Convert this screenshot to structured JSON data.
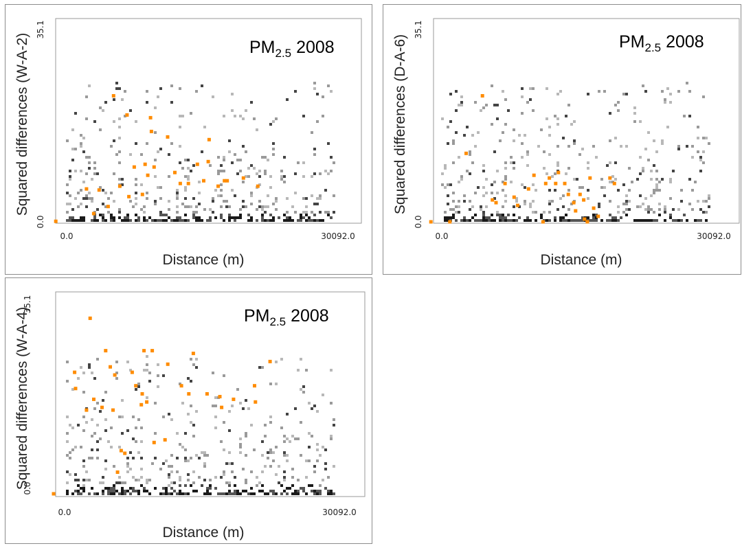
{
  "chart_data": [
    {
      "type": "scatter",
      "title_prefix": "PM",
      "title_sub": "2.5",
      "title_suffix": " 2008",
      "xlabel": "Distance (m)",
      "ylabel": "Squared differences (W-A-2)",
      "xlim": [
        0.0,
        30092.0
      ],
      "ylim": [
        0.0,
        35.1
      ],
      "x_tick_labels": [
        "0.0",
        "30092.0"
      ],
      "y_tick_labels": [
        "0.0",
        "35.1"
      ],
      "grid": false,
      "colors": {
        "highlight": "#ff8c00",
        "cloud": "#7a7a7a",
        "dense": "#1a1a1a"
      },
      "highlighted_points": [
        {
          "x": -1200,
          "y": 0.1
        },
        {
          "x": 2200,
          "y": 6.0
        },
        {
          "x": 3000,
          "y": 1.5
        },
        {
          "x": 3600,
          "y": 5.8
        },
        {
          "x": 4600,
          "y": 2.8
        },
        {
          "x": 5200,
          "y": 23.0
        },
        {
          "x": 5900,
          "y": 6.5
        },
        {
          "x": 6700,
          "y": 19.5
        },
        {
          "x": 6900,
          "y": 4.6
        },
        {
          "x": 7500,
          "y": 10.0
        },
        {
          "x": 8400,
          "y": 5.0
        },
        {
          "x": 8700,
          "y": 10.5
        },
        {
          "x": 9000,
          "y": 8.5
        },
        {
          "x": 9300,
          "y": 19.0
        },
        {
          "x": 9400,
          "y": 16.5
        },
        {
          "x": 9700,
          "y": 10.0
        },
        {
          "x": 11200,
          "y": 15.5
        },
        {
          "x": 12000,
          "y": 9.0
        },
        {
          "x": 12600,
          "y": 7.0
        },
        {
          "x": 13500,
          "y": 7.0
        },
        {
          "x": 14500,
          "y": 10.5
        },
        {
          "x": 15200,
          "y": 7.5
        },
        {
          "x": 15700,
          "y": 11.0
        },
        {
          "x": 15800,
          "y": 15.0
        },
        {
          "x": 16800,
          "y": 6.5
        },
        {
          "x": 17500,
          "y": 7.5
        },
        {
          "x": 17800,
          "y": 7.5
        },
        {
          "x": 19600,
          "y": 8.0
        },
        {
          "x": 21200,
          "y": 6.5
        }
      ]
    },
    {
      "type": "scatter",
      "title_prefix": "PM",
      "title_sub": "2.5",
      "title_suffix": " 2008",
      "xlabel": "Distance (m)",
      "ylabel": "Squared differences (D-A-6)",
      "xlim": [
        0.0,
        30092.0
      ],
      "ylim": [
        0.0,
        35.1
      ],
      "x_tick_labels": [
        "0.0",
        "30092.0"
      ],
      "y_tick_labels": [
        "0.0",
        "35.1"
      ],
      "grid": false,
      "colors": {
        "highlight": "#ff8c00",
        "cloud": "#7a7a7a",
        "dense": "#1a1a1a"
      },
      "highlighted_points": [
        {
          "x": -1200,
          "y": 0.0
        },
        {
          "x": 900,
          "y": 0.0
        },
        {
          "x": 2700,
          "y": 12.5
        },
        {
          "x": 4500,
          "y": 23.0
        },
        {
          "x": 5600,
          "y": 4.0
        },
        {
          "x": 6000,
          "y": 3.5
        },
        {
          "x": 7000,
          "y": 7.0
        },
        {
          "x": 8000,
          "y": 4.5
        },
        {
          "x": 8400,
          "y": 3.0
        },
        {
          "x": 9600,
          "y": 6.0
        },
        {
          "x": 10200,
          "y": 8.5
        },
        {
          "x": 11500,
          "y": 7.0
        },
        {
          "x": 11900,
          "y": 8.0
        },
        {
          "x": 12600,
          "y": 7.0
        },
        {
          "x": 12900,
          "y": 9.0
        },
        {
          "x": 13600,
          "y": 7.0
        },
        {
          "x": 14000,
          "y": 5.0
        },
        {
          "x": 14600,
          "y": 3.5
        },
        {
          "x": 14800,
          "y": 2.0
        },
        {
          "x": 15300,
          "y": 5.0
        },
        {
          "x": 15700,
          "y": 4.0
        },
        {
          "x": 15800,
          "y": 0.5
        },
        {
          "x": 16400,
          "y": 8.0
        },
        {
          "x": 16800,
          "y": 2.5
        },
        {
          "x": 17300,
          "y": 1.0
        },
        {
          "x": 18600,
          "y": 8.0
        },
        {
          "x": 19100,
          "y": 7.0
        },
        {
          "x": 11200,
          "y": 0.0
        },
        {
          "x": 16100,
          "y": 0.0
        }
      ]
    },
    {
      "type": "scatter",
      "title_prefix": "PM",
      "title_sub": "2.5",
      "title_suffix": " 2008",
      "xlabel": "Distance (m)",
      "ylabel": "Squared differences (W-A-4)",
      "xlim": [
        0.0,
        30092.0
      ],
      "ylim": [
        0.0,
        35.1
      ],
      "x_tick_labels": [
        "0.0",
        "30092.0"
      ],
      "y_tick_labels": [
        "0.0",
        "35.1"
      ],
      "grid": false,
      "colors": {
        "highlight": "#ff8c00",
        "cloud": "#7a7a7a",
        "dense": "#1a1a1a"
      },
      "highlighted_points": [
        {
          "x": -1200,
          "y": 0.0
        },
        {
          "x": 1100,
          "y": 22.5
        },
        {
          "x": 1200,
          "y": 19.5
        },
        {
          "x": 2400,
          "y": 15.5
        },
        {
          "x": 2800,
          "y": 32.5
        },
        {
          "x": 3200,
          "y": 17.5
        },
        {
          "x": 4100,
          "y": 16.0
        },
        {
          "x": 4500,
          "y": 26.5
        },
        {
          "x": 5000,
          "y": 23.5
        },
        {
          "x": 5300,
          "y": 15.5
        },
        {
          "x": 5500,
          "y": 22.0
        },
        {
          "x": 5800,
          "y": 4.0
        },
        {
          "x": 6200,
          "y": 8.0
        },
        {
          "x": 6600,
          "y": 7.5
        },
        {
          "x": 7400,
          "y": 22.5
        },
        {
          "x": 7800,
          "y": 20.0
        },
        {
          "x": 8400,
          "y": 16.5
        },
        {
          "x": 8500,
          "y": 18.5
        },
        {
          "x": 8700,
          "y": 26.5
        },
        {
          "x": 9000,
          "y": 17.0
        },
        {
          "x": 9600,
          "y": 26.5
        },
        {
          "x": 9800,
          "y": 9.5
        },
        {
          "x": 11000,
          "y": 10.0
        },
        {
          "x": 11300,
          "y": 24.0
        },
        {
          "x": 12800,
          "y": 20.0
        },
        {
          "x": 13600,
          "y": 18.5
        },
        {
          "x": 14100,
          "y": 26.0
        },
        {
          "x": 15600,
          "y": 18.5
        },
        {
          "x": 17000,
          "y": 18.0
        },
        {
          "x": 17200,
          "y": 16.0
        },
        {
          "x": 18500,
          "y": 17.5
        },
        {
          "x": 20800,
          "y": 20.0
        },
        {
          "x": 20900,
          "y": 17.0
        },
        {
          "x": 22500,
          "y": 24.5
        }
      ]
    }
  ]
}
